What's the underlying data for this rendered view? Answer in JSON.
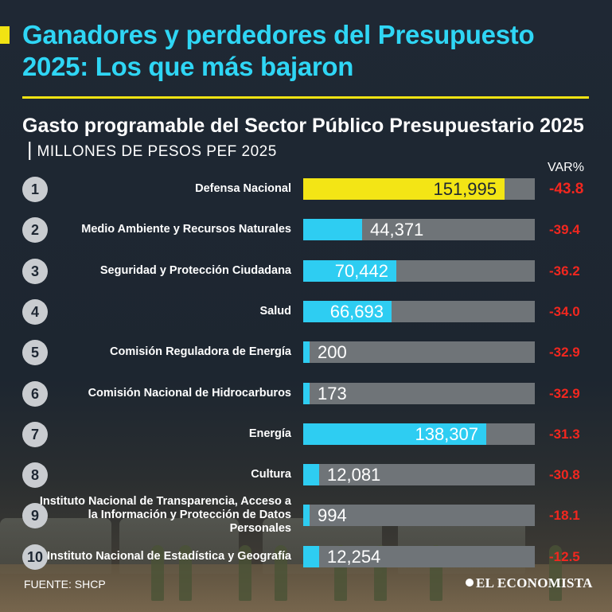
{
  "headline": "Ganadores y perdedores del Presupuesto 2025: Los que más bajaron",
  "subtitle_bold": "Gasto programable del Sector Público Presupuestario 2025",
  "subtitle_sep": "|",
  "subtitle_unit": "MILLONES DE PESOS PEF 2025",
  "var_header": "VAR%",
  "source": "FUENTE: SHCP",
  "brand": "EL ECONOMISTA",
  "colors": {
    "highlight": "#f3e515",
    "bar": "#2ecdf2",
    "track": "#6f7478",
    "negative": "#f2271f",
    "title": "#2fd6f5"
  },
  "chart_data": {
    "type": "bar",
    "orientation": "horizontal",
    "title": "Gasto programable del Sector Público Presupuestario 2025",
    "unit": "MILLONES DE PESOS PEF 2025",
    "xlim": [
      0,
      175000
    ],
    "categories": [
      "Defensa Nacional",
      "Medio Ambiente y Recursos Naturales",
      "Seguridad y Protección Ciudadana",
      "Salud",
      "Comisión Reguladora de Energía",
      "Comisión Nacional de Hidrocarburos",
      "Energía",
      "Cultura",
      "Instituto Nacional de Transparencia, Acceso a la Información y Protección de Datos Personales",
      "Instituto Nacional de Estadística y Geografía"
    ],
    "ranks": [
      "1",
      "2",
      "3",
      "4",
      "5",
      "6",
      "7",
      "8",
      "9",
      "10"
    ],
    "values": [
      151995,
      44371,
      70442,
      66693,
      200,
      173,
      138307,
      12081,
      994,
      12254
    ],
    "value_labels": [
      "151,995",
      "44,371",
      "70,442",
      "66,693",
      "200",
      "173",
      "138,307",
      "12,081",
      "994",
      "12,254"
    ],
    "var_pct": [
      "-43.8",
      "-39.4",
      "-36.2",
      "-34.0",
      "-32.9",
      "-32.9",
      "-31.3",
      "-30.8",
      "-18.1",
      "-12.5"
    ]
  }
}
